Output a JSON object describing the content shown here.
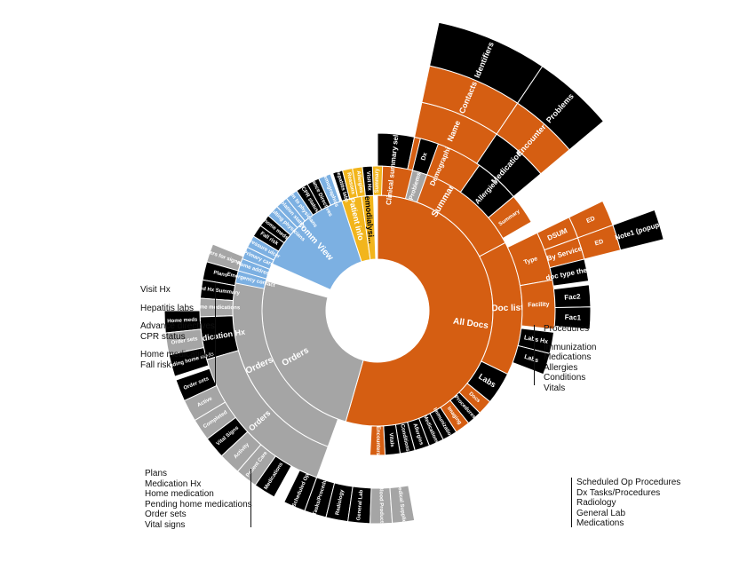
{
  "colors": {
    "orange": "#d55e12",
    "black": "#000000",
    "gray": "#a5a5a5",
    "blue": "#7cb0e2",
    "gold": "#f2b51c",
    "white": "#ffffff"
  },
  "rays": {
    "colors": [
      "#a5a5a5",
      "#8fbf4a",
      "#4f7fc3",
      "#e07b2f",
      "#d9c22b",
      "#6b6b6b",
      "#5b9bd5",
      "#c4562a",
      "#3f6f9a",
      "#9e7d54",
      "#7f9f3f",
      "#b1b1b1",
      "#e39a2e",
      "#a5a5a5"
    ]
  },
  "sunburst": {
    "segments": [
      {
        "label": "All Docs",
        "color": "orange",
        "r0": 0,
        "r1": 1,
        "a0": -90,
        "a1": 106,
        "text": "#fff",
        "size": 10
      },
      {
        "label": "Summary",
        "color": "orange",
        "r0": 1,
        "r1": 2,
        "a0": -90,
        "a1": -28,
        "text": "#fff",
        "size": 10
      },
      {
        "label": "Doc list",
        "color": "orange",
        "r0": 1,
        "r1": 2,
        "a0": -28,
        "a1": 26,
        "text": "#fff",
        "size": 10
      },
      {
        "label": "Labs",
        "color": "black",
        "r0": 1,
        "r1": 2,
        "a0": 26,
        "a1": 39,
        "text": "#fff",
        "size": 9
      },
      {
        "label": "Docs",
        "color": "orange",
        "r0": 1,
        "r1": 2,
        "a0": 39,
        "a1": 45,
        "text": "#fff",
        "size": 6
      },
      {
        "label": "Procedures",
        "color": "black",
        "r0": 1,
        "r1": 2,
        "a0": 45,
        "a1": 51,
        "text": "#fff",
        "size": 6
      },
      {
        "label": "Imaging",
        "color": "orange",
        "r0": 1,
        "r1": 2,
        "a0": 51,
        "a1": 57,
        "text": "#fff",
        "size": 6
      },
      {
        "label": "Immunization",
        "color": "black",
        "r0": 1,
        "r1": 2,
        "a0": 57,
        "a1": 63,
        "text": "#fff",
        "size": 6
      },
      {
        "label": "Medications",
        "color": "black",
        "r0": 1,
        "r1": 2,
        "a0": 63,
        "a1": 69,
        "text": "#fff",
        "size": 6
      },
      {
        "label": "Allergies",
        "color": "black",
        "r0": 1,
        "r1": 2,
        "a0": 69,
        "a1": 75,
        "text": "#fff",
        "size": 6
      },
      {
        "label": "Conditions",
        "color": "black",
        "r0": 1,
        "r1": 2,
        "a0": 75,
        "a1": 81,
        "text": "#fff",
        "size": 6
      },
      {
        "label": "Vitals",
        "color": "black",
        "r0": 1,
        "r1": 2,
        "a0": 81,
        "a1": 87,
        "text": "#fff",
        "size": 6
      },
      {
        "label": "Encounters",
        "color": "orange",
        "r0": 1,
        "r1": 2,
        "a0": 87,
        "a1": 93,
        "text": "#fff",
        "size": 6
      },
      {
        "label": "Clinical summary selected items",
        "color": "black",
        "r0": 2,
        "r1": 3,
        "a0": -90,
        "a1": -78,
        "text": "#fff",
        "size": 8
      },
      {
        "label": "Demographics",
        "color": "orange",
        "r0": 2,
        "r1": 3,
        "a0": -78,
        "a1": -55,
        "text": "#fff",
        "size": 8
      },
      {
        "label": "Allergies",
        "color": "black",
        "r0": 2,
        "r1": 3,
        "a0": -55,
        "a1": -40,
        "text": "#fff",
        "size": 8
      },
      {
        "label": "Summary",
        "color": "orange",
        "r0": 2,
        "r1": 3,
        "a0": -40,
        "a1": -30,
        "text": "#fff",
        "size": 6
      },
      {
        "label": "Type",
        "color": "orange",
        "r0": 2,
        "r1": 3,
        "a0": -26,
        "a1": -10,
        "text": "#fff",
        "size": 7
      },
      {
        "label": "Facility",
        "color": "orange",
        "r0": 2,
        "r1": 3,
        "a0": -10,
        "a1": 6,
        "text": "#fff",
        "size": 7
      },
      {
        "label": "Labs Hx",
        "color": "black",
        "r0": 2,
        "r1": 3,
        "a0": 7,
        "a1": 14,
        "text": "#fff",
        "size": 7
      },
      {
        "label": "Labs",
        "color": "black",
        "r0": 2,
        "r1": 3,
        "a0": 14,
        "a1": 21,
        "text": "#fff",
        "size": 7
      },
      {
        "label": "Name",
        "color": "orange",
        "r0": 3,
        "r1": 4,
        "a0": -78,
        "a1": -56,
        "text": "#fff",
        "size": 9
      },
      {
        "label": "Medications",
        "color": "black",
        "r0": 3,
        "r1": 4,
        "a0": -56,
        "a1": -40,
        "text": "#fff",
        "size": 9
      },
      {
        "label": "DSUM",
        "color": "orange",
        "r0": 3,
        "r1": 4,
        "a0": -26,
        "a1": -20,
        "text": "#fff",
        "size": 8
      },
      {
        "label": "By Service",
        "color": "orange",
        "r0": 3,
        "r1": 4,
        "a0": -20,
        "a1": -14,
        "text": "#fff",
        "size": 8
      },
      {
        "label": "doc type the...",
        "color": "black",
        "r0": 3,
        "r1": 4,
        "a0": -14,
        "a1": -8,
        "text": "#fff",
        "size": 8
      },
      {
        "label": "Fac2",
        "color": "black",
        "r0": 3,
        "r1": 4,
        "a0": -7,
        "a1": -1,
        "text": "#fff",
        "size": 8
      },
      {
        "label": "Fac1",
        "color": "black",
        "r0": 3,
        "r1": 4,
        "a0": -1,
        "a1": 5,
        "text": "#fff",
        "size": 8
      },
      {
        "label": "Contacts",
        "color": "orange",
        "r0": 4,
        "r1": 5,
        "a0": -78,
        "a1": -56,
        "text": "#fff",
        "size": 9
      },
      {
        "label": "Encounters",
        "color": "orange",
        "r0": 4,
        "r1": 5,
        "a0": -56,
        "a1": -40,
        "text": "#fff",
        "size": 9
      },
      {
        "label": "ED",
        "color": "orange",
        "r0": 4,
        "r1": 5,
        "a0": -26,
        "a1": -20,
        "text": "#fff",
        "size": 7
      },
      {
        "label": "ED",
        "color": "orange",
        "r0": 4,
        "r1": 5,
        "a0": -20,
        "a1": -14,
        "text": "#fff",
        "size": 7
      },
      {
        "label": "Identifiers",
        "color": "black",
        "r0": 5,
        "r1": 6,
        "a0": -78,
        "a1": -56,
        "text": "#fff",
        "size": 9
      },
      {
        "label": "Problems",
        "color": "black",
        "r0": 5,
        "r1": 6,
        "a0": -56,
        "a1": -40,
        "text": "#fff",
        "size": 9
      },
      {
        "label": "Note1 (popup)",
        "color": "black",
        "r0": 5,
        "r1": 6,
        "a0": -20,
        "a1": -14,
        "text": "#fff",
        "size": 8
      },
      {
        "label": "Orders",
        "color": "gray",
        "r0": 0,
        "r1": 1,
        "a0": 106,
        "a1": 195,
        "text": "#fff",
        "size": 10
      },
      {
        "label": "Orders",
        "color": "gray",
        "r0": 1,
        "r1": 2,
        "a0": 110,
        "a1": 200,
        "text": "#fff",
        "size": 10
      },
      {
        "label": "Orders for signature",
        "color": "gray",
        "r0": 2,
        "r1": 3,
        "a0": 196,
        "a1": 202,
        "text": "#fff",
        "size": 6
      },
      {
        "label": "Plans",
        "color": "black",
        "r0": 2,
        "r1": 3,
        "a0": 190,
        "a1": 196,
        "text": "#fff",
        "size": 6
      },
      {
        "label": "Med Hx Summary",
        "color": "black",
        "r0": 2,
        "r1": 3,
        "a0": 184,
        "a1": 190,
        "text": "#fff",
        "size": 6
      },
      {
        "label": "Home medications",
        "color": "gray",
        "r0": 2,
        "r1": 3,
        "a0": 178,
        "a1": 184,
        "text": "#fff",
        "size": 6
      },
      {
        "label": "Medication Hx",
        "color": "black",
        "r0": 2,
        "r1": 3,
        "a0": 164,
        "a1": 178,
        "text": "#fff",
        "size": 9
      },
      {
        "label": "Orders",
        "color": "gray",
        "r0": 2,
        "r1": 3,
        "a0": 110,
        "a1": 164,
        "text": "#fff",
        "size": 9
      },
      {
        "label": "Home meds",
        "color": "black",
        "r0": 3,
        "r1": 4,
        "a0": 174,
        "a1": 180,
        "text": "#fff",
        "size": 6
      },
      {
        "label": "Order sets",
        "color": "gray",
        "r0": 3,
        "r1": 4,
        "a0": 168,
        "a1": 174,
        "text": "#fff",
        "size": 6
      },
      {
        "label": "Pending home meds",
        "color": "black",
        "r0": 3,
        "r1": 4,
        "a0": 162,
        "a1": 168,
        "text": "#fff",
        "size": 6
      },
      {
        "label": "Order sets",
        "color": "black",
        "r0": 3,
        "r1": 4,
        "a0": 155,
        "a1": 161,
        "text": "#fff",
        "size": 6
      },
      {
        "label": "Active",
        "color": "gray",
        "r0": 3,
        "r1": 4,
        "a0": 149,
        "a1": 155,
        "text": "#fff",
        "size": 6
      },
      {
        "label": "Completed",
        "color": "gray",
        "r0": 3,
        "r1": 4,
        "a0": 143,
        "a1": 149,
        "text": "#fff",
        "size": 6
      },
      {
        "label": "Vital Signs",
        "color": "black",
        "r0": 3,
        "r1": 4,
        "a0": 137,
        "a1": 143,
        "text": "#fff",
        "size": 6
      },
      {
        "label": "Activity",
        "color": "gray",
        "r0": 3,
        "r1": 4,
        "a0": 131,
        "a1": 137,
        "text": "#fff",
        "size": 6
      },
      {
        "label": "Patient Care",
        "color": "gray",
        "r0": 3,
        "r1": 4,
        "a0": 125,
        "a1": 131,
        "text": "#fff",
        "size": 6
      },
      {
        "label": "Medications",
        "color": "black",
        "r0": 3,
        "r1": 4,
        "a0": 119,
        "a1": 125,
        "text": "#fff",
        "size": 6
      },
      {
        "label": "Scheduled Op",
        "color": "black",
        "r0": 3,
        "r1": 4,
        "a0": 110,
        "a1": 116,
        "text": "#fff",
        "size": 6
      },
      {
        "label": "Dx Tasks/Procedures",
        "color": "black",
        "r0": 3,
        "r1": 4,
        "a0": 104,
        "a1": 110,
        "text": "#fff",
        "size": 6
      },
      {
        "label": "Radiology",
        "color": "black",
        "r0": 3,
        "r1": 4,
        "a0": 98,
        "a1": 104,
        "text": "#fff",
        "size": 6
      },
      {
        "label": "General Lab",
        "color": "black",
        "r0": 3,
        "r1": 4,
        "a0": 92,
        "a1": 98,
        "text": "#fff",
        "size": 6
      },
      {
        "label": "Blood Products",
        "color": "gray",
        "r0": 3,
        "r1": 4,
        "a0": 86,
        "a1": 92,
        "text": "#fff",
        "size": 6
      },
      {
        "label": "Medical Supplies",
        "color": "gray",
        "r0": 3,
        "r1": 4,
        "a0": 80,
        "a1": 86,
        "text": "#fff",
        "size": 6
      },
      {
        "label": "Comm View",
        "color": "blue",
        "r0": 0,
        "r1": 1,
        "a0": 204,
        "a1": 252,
        "text": "#fff",
        "size": 10
      },
      {
        "label": "Demographics",
        "color": "blue",
        "r0": 1,
        "r1": 2,
        "a0": 246,
        "a1": 251,
        "text": "#fff",
        "size": 6
      },
      {
        "label": "Advance Directives",
        "color": "black",
        "r0": 1,
        "r1": 2,
        "a0": 241,
        "a1": 246,
        "text": "#fff",
        "size": 6
      },
      {
        "label": "CPR status",
        "color": "black",
        "r0": 1,
        "r1": 2,
        "a0": 236,
        "a1": 241,
        "text": "#fff",
        "size": 6
      },
      {
        "label": "Comm to physicians",
        "color": "blue",
        "r0": 1,
        "r1": 2,
        "a0": 231,
        "a1": 236,
        "text": "#fff",
        "size": 6
      },
      {
        "label": "Isolation status",
        "color": "blue",
        "r0": 1,
        "r1": 2,
        "a0": 226,
        "a1": 231,
        "text": "#fff",
        "size": 6
      },
      {
        "label": "Consulting physicians",
        "color": "blue",
        "r0": 1,
        "r1": 2,
        "a0": 221,
        "a1": 226,
        "text": "#fff",
        "size": 6
      },
      {
        "label": "home meds",
        "color": "black",
        "r0": 1,
        "r1": 2,
        "a0": 216,
        "a1": 221,
        "text": "#fff",
        "size": 6
      },
      {
        "label": "Fall risk",
        "color": "black",
        "r0": 1,
        "r1": 2,
        "a0": 211,
        "a1": 216,
        "text": "#fff",
        "size": 6
      },
      {
        "label": "Pressure ulcer",
        "color": "blue",
        "r0": 1,
        "r1": 2,
        "a0": 206,
        "a1": 211,
        "text": "#fff",
        "size": 6
      },
      {
        "label": "Primary care",
        "color": "blue",
        "r0": 1,
        "r1": 2,
        "a0": 201,
        "a1": 206,
        "text": "#fff",
        "size": 6
      },
      {
        "label": "Home address",
        "color": "blue",
        "r0": 1,
        "r1": 2,
        "a0": 196,
        "a1": 201,
        "text": "#fff",
        "size": 6
      },
      {
        "label": "Emergency contact",
        "color": "blue",
        "r0": 1,
        "r1": 2,
        "a0": 191,
        "a1": 196,
        "text": "#fff",
        "size": 6
      },
      {
        "label": "Patient info",
        "color": "gold",
        "r0": 0,
        "r1": 1,
        "a0": 252,
        "a1": 262,
        "text": "#fff",
        "size": 9
      },
      {
        "label": "Hemodialysi...",
        "color": "gold",
        "r0": 0,
        "r1": 1,
        "a0": 262,
        "a1": 268,
        "text": "#000",
        "size": 9
      },
      {
        "label": "Hepatitis labs",
        "color": "black",
        "r0": 1,
        "r1": 2,
        "a0": 252,
        "a1": 256,
        "text": "#fff",
        "size": 6
      },
      {
        "label": "Reasons",
        "color": "gold",
        "r0": 1,
        "r1": 2,
        "a0": 256,
        "a1": 260,
        "text": "#fff",
        "size": 6
      },
      {
        "label": "Allergies",
        "color": "gold",
        "r0": 1,
        "r1": 2,
        "a0": 260,
        "a1": 264,
        "text": "#fff",
        "size": 6
      },
      {
        "label": "Visit Hx",
        "color": "black",
        "r0": 1,
        "r1": 2,
        "a0": 264,
        "a1": 268,
        "text": "#fff",
        "size": 6
      },
      {
        "label": "Summary",
        "color": "gold",
        "r0": 1,
        "r1": 2,
        "a0": 268,
        "a1": 272,
        "text": "#fff",
        "size": 6
      },
      {
        "label": "Problems",
        "color": "gray",
        "r0": 1,
        "r1": 2,
        "a0": 284,
        "a1": 290,
        "text": "#fff",
        "size": 7
      },
      {
        "label": "Dx",
        "color": "black",
        "r0": 2,
        "r1": 3,
        "a0": 284,
        "a1": 290,
        "text": "#fff",
        "size": 7
      }
    ]
  },
  "left_list_top": [
    "Visit Hx",
    "Hepatitis labs",
    "Advance directives",
    "CPR status",
    "Home medications",
    "Fall risk"
  ],
  "left_list_bottom": [
    "Plans",
    "Medication Hx",
    "Home medication",
    "Pending home medications",
    "Order sets",
    "Vital signs"
  ],
  "right_list_top": [
    "Procedures",
    "Immunization",
    "Medications",
    "Allergies",
    "Conditions",
    "Vitals"
  ],
  "right_list_bottom": [
    "Scheduled Op Procedures",
    "Dx Tasks/Procedures",
    "Radiology",
    "General Lab",
    "Medications"
  ]
}
